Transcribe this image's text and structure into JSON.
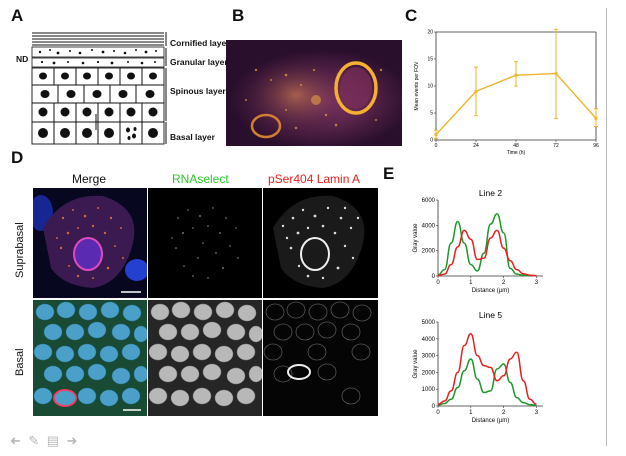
{
  "figure": {
    "panels": {
      "a": "A",
      "b": "B",
      "c": "C",
      "d": "D",
      "e": "E"
    },
    "panel_a": {
      "nd_label": "ND",
      "layers": [
        "Cornified layer",
        "Granular layer",
        "Spinous layer",
        "Basal layer"
      ]
    },
    "panel_d": {
      "columns": [
        "Merge",
        "RNAselect",
        "pSer404 Lamin A"
      ],
      "rows": [
        "Suprabasal",
        "Basal"
      ],
      "colors": {
        "merge": "#111111",
        "rnaselect": "#2ec82e",
        "lamin": "#e82020"
      }
    }
  },
  "toolbar": {
    "icons": [
      "back-arrow-icon",
      "pencil-icon",
      "notes-icon",
      "forward-arrow-icon"
    ]
  },
  "chart_data": [
    {
      "type": "line",
      "title": "",
      "xlabel": "Time (h)",
      "ylabel": "Mean events per FOV",
      "x": [
        0,
        24,
        48,
        72,
        96
      ],
      "xticks": [
        "0",
        "24",
        "48",
        "72",
        "96"
      ],
      "yticks": [
        "0",
        "5",
        "10",
        "15",
        "20"
      ],
      "xlim": [
        0,
        96
      ],
      "ylim": [
        0,
        20
      ],
      "series": [
        {
          "values": [
            1,
            9,
            12,
            12.3,
            4
          ],
          "err_low": [
            0.3,
            4.5,
            10,
            4,
            2.5
          ],
          "err_high": [
            1.8,
            13.5,
            14.5,
            20.5,
            5.8
          ],
          "color": "#f0b429"
        }
      ]
    },
    {
      "type": "line",
      "title": "Line 2",
      "xlabel": "Distance (µm)",
      "ylabel": "Gray value",
      "xticks": [
        "0",
        "1",
        "2",
        "3"
      ],
      "yticks": [
        "0",
        "2000",
        "4000",
        "6000"
      ],
      "xlim": [
        0,
        3.2
      ],
      "ylim": [
        0,
        6000
      ],
      "series": [
        {
          "x": [
            0,
            0.2,
            0.4,
            0.6,
            0.8,
            1.0,
            1.2,
            1.4,
            1.6,
            1.8,
            2.0,
            2.2,
            2.4,
            2.6,
            2.8,
            3.0
          ],
          "values": [
            80,
            500,
            2600,
            4300,
            2600,
            900,
            400,
            1800,
            4100,
            4900,
            3400,
            600,
            150,
            60,
            40,
            30
          ],
          "color": "#1a9a2a"
        },
        {
          "x": [
            0,
            0.2,
            0.4,
            0.6,
            0.8,
            1.0,
            1.2,
            1.4,
            1.6,
            1.8,
            2.0,
            2.2,
            2.4,
            2.6,
            2.8,
            3.0
          ],
          "values": [
            30,
            150,
            900,
            2300,
            3600,
            2900,
            1300,
            1400,
            3000,
            3600,
            2200,
            1200,
            500,
            180,
            60,
            20
          ],
          "color": "#e82020"
        }
      ]
    },
    {
      "type": "line",
      "title": "Line 5",
      "xlabel": "Distance (µm)",
      "ylabel": "Gray value",
      "xticks": [
        "0",
        "1",
        "2",
        "3"
      ],
      "yticks": [
        "0",
        "1000",
        "2000",
        "3000",
        "4000",
        "5000"
      ],
      "xlim": [
        0,
        3.2
      ],
      "ylim": [
        0,
        5000
      ],
      "series": [
        {
          "x": [
            0,
            0.2,
            0.4,
            0.6,
            0.8,
            1.0,
            1.2,
            1.4,
            1.6,
            1.8,
            2.0,
            2.2,
            2.4,
            2.6,
            2.8,
            3.0
          ],
          "values": [
            60,
            150,
            400,
            1100,
            2100,
            2800,
            1600,
            800,
            900,
            2200,
            2500,
            1400,
            500,
            200,
            80,
            40
          ],
          "color": "#1a9a2a"
        },
        {
          "x": [
            0,
            0.2,
            0.4,
            0.6,
            0.8,
            1.0,
            1.2,
            1.4,
            1.6,
            1.8,
            2.0,
            2.2,
            2.4,
            2.6,
            2.8,
            3.0
          ],
          "values": [
            100,
            300,
            900,
            2000,
            3600,
            4300,
            3000,
            2400,
            2300,
            1500,
            1800,
            2800,
            3200,
            1500,
            400,
            100
          ],
          "color": "#e82020"
        }
      ]
    }
  ]
}
